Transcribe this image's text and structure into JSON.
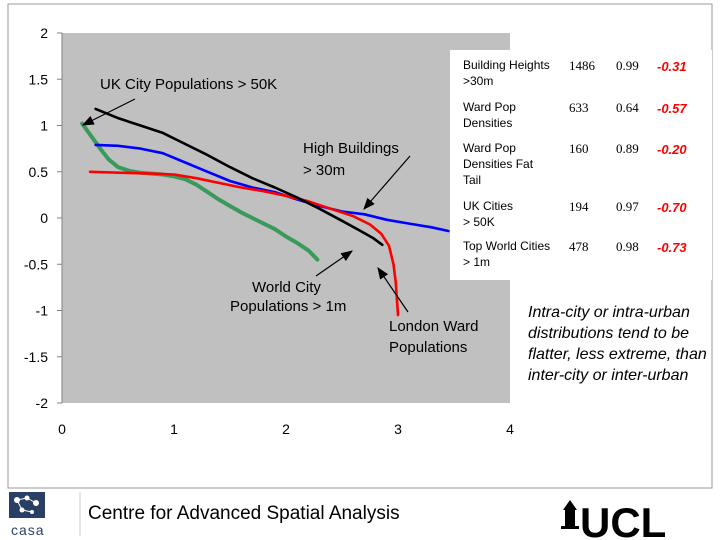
{
  "chart_data": {
    "type": "line",
    "x_ticks": [
      "0",
      "1",
      "2",
      "3",
      "4"
    ],
    "y_ticks": [
      "2",
      "1.5",
      "1",
      "0.5",
      "0",
      "-0.5",
      "-1",
      "-1.5",
      "-2"
    ],
    "xlim": [
      0,
      4
    ],
    "ylim": [
      -2,
      2
    ],
    "series": [
      {
        "name": "UK City Populations > 50K",
        "color": "#3a9a5b",
        "points": [
          [
            0.18,
            1.02
          ],
          [
            0.24,
            0.92
          ],
          [
            0.3,
            0.82
          ],
          [
            0.36,
            0.72
          ],
          [
            0.42,
            0.63
          ],
          [
            0.5,
            0.55
          ],
          [
            0.6,
            0.51
          ],
          [
            0.7,
            0.49
          ],
          [
            0.8,
            0.48
          ],
          [
            0.9,
            0.47
          ],
          [
            1.0,
            0.45
          ],
          [
            1.1,
            0.42
          ],
          [
            1.2,
            0.36
          ],
          [
            1.3,
            0.28
          ],
          [
            1.4,
            0.2
          ],
          [
            1.5,
            0.13
          ],
          [
            1.6,
            0.06
          ],
          [
            1.7,
            0.0
          ],
          [
            1.8,
            -0.06
          ],
          [
            1.9,
            -0.12
          ],
          [
            2.0,
            -0.2
          ],
          [
            2.1,
            -0.27
          ],
          [
            2.2,
            -0.35
          ],
          [
            2.28,
            -0.45
          ]
        ]
      },
      {
        "name": "Building Heights > 30m",
        "color": "#0000ff",
        "points": [
          [
            0.3,
            0.79
          ],
          [
            0.5,
            0.78
          ],
          [
            0.7,
            0.75
          ],
          [
            0.9,
            0.7
          ],
          [
            1.1,
            0.6
          ],
          [
            1.3,
            0.5
          ],
          [
            1.5,
            0.4
          ],
          [
            1.7,
            0.33
          ],
          [
            1.9,
            0.28
          ],
          [
            2.1,
            0.2
          ],
          [
            2.3,
            0.13
          ],
          [
            2.5,
            0.07
          ],
          [
            2.7,
            0.04
          ],
          [
            2.9,
            -0.02
          ],
          [
            3.1,
            -0.06
          ],
          [
            3.3,
            -0.1
          ],
          [
            3.45,
            -0.14
          ]
        ]
      },
      {
        "name": "Ward Pop Densities (London)",
        "color": "#ff0000",
        "points": [
          [
            0.25,
            0.5
          ],
          [
            0.5,
            0.49
          ],
          [
            0.8,
            0.48
          ],
          [
            1.0,
            0.47
          ],
          [
            1.2,
            0.43
          ],
          [
            1.4,
            0.38
          ],
          [
            1.6,
            0.33
          ],
          [
            1.8,
            0.29
          ],
          [
            2.0,
            0.24
          ],
          [
            2.2,
            0.18
          ],
          [
            2.4,
            0.1
          ],
          [
            2.6,
            0.02
          ],
          [
            2.75,
            -0.07
          ],
          [
            2.85,
            -0.17
          ],
          [
            2.92,
            -0.3
          ],
          [
            2.96,
            -0.5
          ],
          [
            2.98,
            -0.7
          ],
          [
            3.0,
            -1.05
          ]
        ]
      },
      {
        "name": "UK Cities > 50K (black)",
        "color": "#000000",
        "points": [
          [
            0.3,
            1.18
          ],
          [
            0.5,
            1.08
          ],
          [
            0.7,
            1.0
          ],
          [
            0.9,
            0.92
          ],
          [
            1.1,
            0.8
          ],
          [
            1.3,
            0.68
          ],
          [
            1.5,
            0.55
          ],
          [
            1.7,
            0.43
          ],
          [
            1.9,
            0.33
          ],
          [
            2.1,
            0.22
          ],
          [
            2.3,
            0.1
          ],
          [
            2.5,
            -0.03
          ],
          [
            2.65,
            -0.13
          ],
          [
            2.78,
            -0.22
          ],
          [
            2.86,
            -0.29
          ]
        ]
      }
    ],
    "annotations": {
      "uk_city": "UK City Populations > 50K",
      "high_buildings_1": "High Buildings",
      "high_buildings_2": "> 30m",
      "world_city_1": "World City",
      "world_city_2": "Populations > 1m",
      "london_ward_1": "London Ward",
      "london_ward_2": "Populations"
    },
    "table": {
      "rows": [
        {
          "label": [
            "Building Heights",
            ">30m"
          ],
          "n": "1486",
          "r": "0.99",
          "exp": "-0.31"
        },
        {
          "label": [
            "Ward Pop",
            "Densities"
          ],
          "n": "633",
          "r": "0.64",
          "exp": "-0.57"
        },
        {
          "label": [
            "Ward Pop",
            "Densities Fat",
            "Tail"
          ],
          "n": "160",
          "r": "0.89",
          "exp": "-0.20"
        },
        {
          "label": [
            "UK Cities",
            "> 50K"
          ],
          "n": "194",
          "r": "0.97",
          "exp": "-0.70"
        },
        {
          "label": [
            "Top World Cities",
            "> 1m"
          ],
          "n": "478",
          "r": "0.98",
          "exp": "-0.73"
        }
      ]
    }
  },
  "note": "Intra-city or intra-urban distributions tend to be flatter, less extreme, than inter-city or inter-urban",
  "footer": {
    "title": "Centre for Advanced Spatial Analysis",
    "casa_logo": "casa",
    "ucl_logo": "UCL"
  },
  "colors": {
    "plot_bg": "#c0c0c0",
    "accent_red": "#ff0000"
  }
}
